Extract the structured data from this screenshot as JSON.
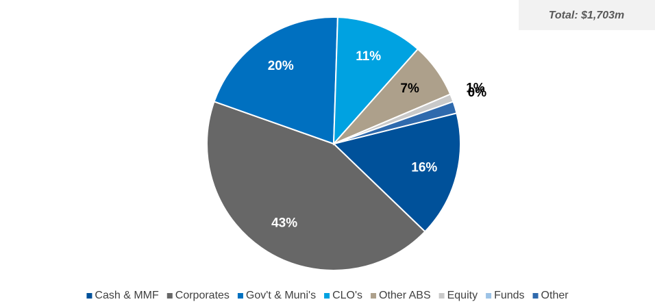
{
  "chart_data": {
    "type": "pie",
    "annotation": "Total: $1,703m",
    "categories": [
      "Cash & MMF",
      "Corporates",
      "Gov't & Muni's",
      "CLO's",
      "Other ABS",
      "Equity",
      "Funds",
      "Other"
    ],
    "values": [
      16,
      43,
      20,
      11,
      7,
      1,
      0,
      1.5
    ],
    "value_labels": [
      "16%",
      "43%",
      "20%",
      "11%",
      "7%",
      "1%",
      "0%",
      null
    ],
    "colors": [
      "#00519a",
      "#676767",
      "#0070c0",
      "#00a2e1",
      "#ada08b",
      "#c9c9c9",
      "#9dc3e6",
      "#2f6aad"
    ],
    "label_colors": [
      "#ffffff",
      "#ffffff",
      "#ffffff",
      "#ffffff",
      "#000000",
      "#000000",
      "#000000",
      "#000000"
    ],
    "start_angle": 76,
    "legend": "bottom"
  }
}
